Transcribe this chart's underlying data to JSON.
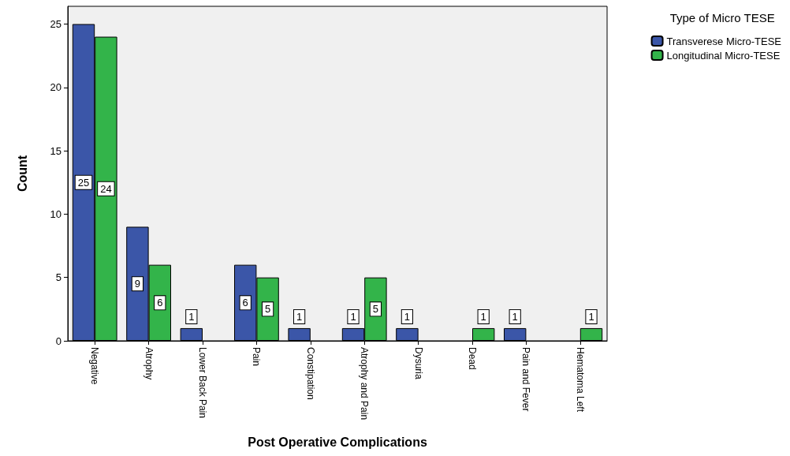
{
  "chart_data": {
    "type": "bar",
    "xlabel": "Post Operative Complications",
    "ylabel": "Count",
    "legend_title": "Type of Micro TESE",
    "categories": [
      "Negative",
      "Atrophy",
      "Lower Back Pain",
      "Pain",
      "Constipation",
      "Atrophy and Pain",
      "Dysuria",
      "Dead",
      "Pain and Fever",
      "Hematoma Left"
    ],
    "series": [
      {
        "name": "Transverese Micro-TESE",
        "color": "#3b56a8",
        "values": [
          25,
          9,
          1,
          6,
          1,
          1,
          1,
          null,
          1,
          null
        ]
      },
      {
        "name": "Longitudinal Micro-TESE",
        "color": "#33b44a",
        "values": [
          24,
          6,
          null,
          5,
          null,
          5,
          null,
          1,
          null,
          1
        ]
      }
    ],
    "ylim": [
      0,
      26.4
    ],
    "yticks": [
      0,
      5,
      10,
      15,
      20,
      25
    ],
    "grid": false,
    "legend": "top right",
    "data_labels": true
  }
}
